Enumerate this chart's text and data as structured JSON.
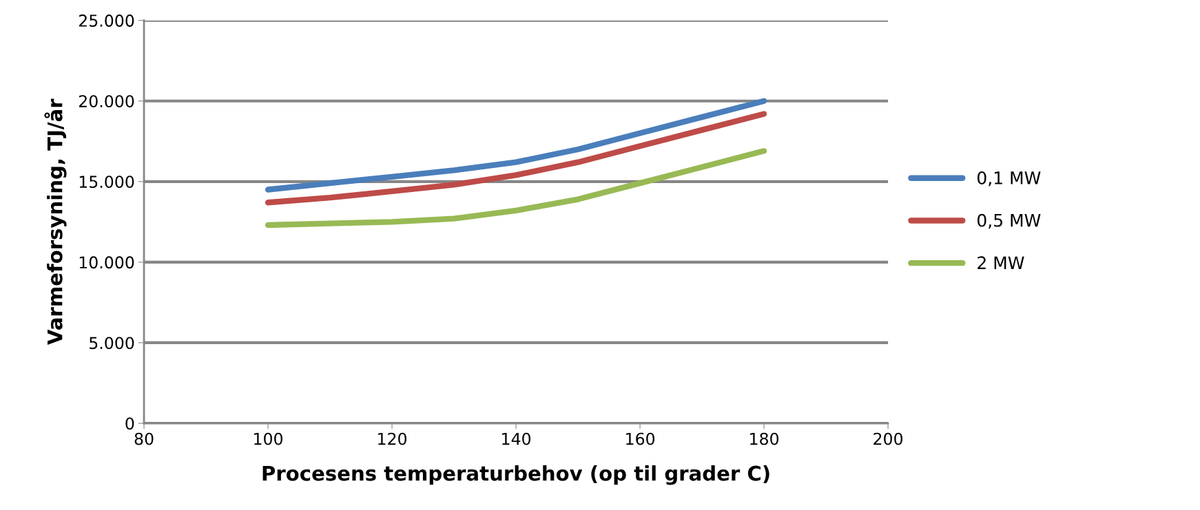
{
  "chart_data": {
    "type": "line",
    "xlabel": "Procesens temperaturbehov (op til grader C)",
    "ylabel": "Varmeforsyning, TJ/år",
    "x": [
      100,
      110,
      120,
      130,
      140,
      150,
      160,
      170,
      180
    ],
    "series": [
      {
        "name": "0,1 MW",
        "color": "#4a7ebb",
        "values": [
          14500,
          14900,
          15300,
          15700,
          16200,
          17000,
          18000,
          19000,
          20000
        ]
      },
      {
        "name": "0,5 MW",
        "color": "#be4b48",
        "values": [
          13700,
          14000,
          14400,
          14800,
          15400,
          16200,
          17200,
          18200,
          19200
        ]
      },
      {
        "name": "2 MW",
        "color": "#98b954",
        "values": [
          12300,
          12400,
          12500,
          12700,
          13200,
          13900,
          14900,
          15900,
          16900
        ]
      }
    ],
    "xlim": [
      80,
      200
    ],
    "xticks": [
      80,
      100,
      120,
      140,
      160,
      180,
      200
    ],
    "ylim": [
      0,
      25000
    ],
    "yticks": [
      0,
      {
        "value": 5000,
        "label": "5.000"
      },
      {
        "value": 10000,
        "label": "10.000"
      },
      {
        "value": 15000,
        "label": "15.000"
      },
      {
        "value": 20000,
        "label": "20.000"
      },
      {
        "value": 25000,
        "label": "25.000"
      }
    ],
    "grid": "y",
    "legend": "right",
    "marker": "none",
    "line_style": "solid"
  }
}
